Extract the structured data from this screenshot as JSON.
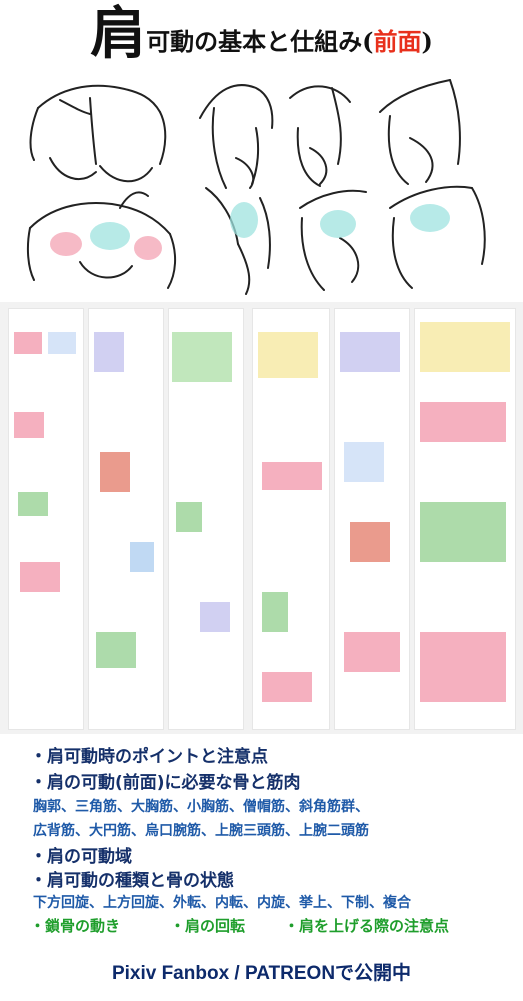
{
  "title": {
    "kanji_large": "肩",
    "text_main": "可動の基本と仕組み",
    "paren_open": "(",
    "text_red": "前面",
    "paren_close": ")",
    "accent_color": "#e8301c"
  },
  "bullets": [
    "・肩可動時のポイントと注意点",
    "・肩の可動(前面)に必要な骨と筋肉"
  ],
  "muscles_line1": "胸郭、三角筋、大胸筋、小胸筋、僧帽筋、斜角筋群、",
  "muscles_line2": "広背筋、大円筋、烏口腕筋、上腕三頭筋、上腕二頭筋",
  "bullet3": "・肩の可動域",
  "bullet4": "・肩可動の種類と骨の状態",
  "movements": "下方回旋、上方回旋、外転、内転、内旋、挙上、下制、複合",
  "extras": {
    "item1": "・鎖骨の動き",
    "item2": "・肩の回転",
    "item3": "・肩を上げる際の注意点"
  },
  "footer": "Pixiv Fanbox / PATREONで公開中",
  "colors": {
    "navy": "#15306a",
    "blue": "#1f5aa8",
    "green": "#1f9e2c",
    "highlight_cyan": "#9fe3e0",
    "highlight_pink": "#f4a3b4"
  }
}
